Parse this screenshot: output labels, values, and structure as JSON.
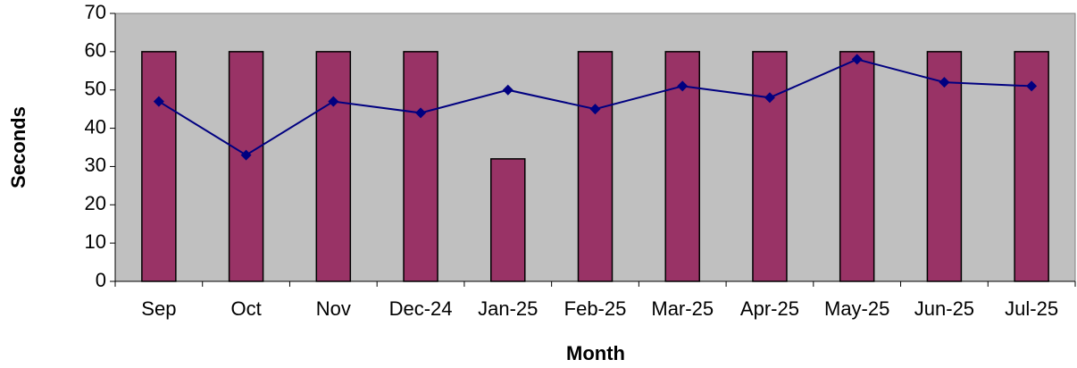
{
  "chart_data": {
    "type": "bar",
    "x_label": "Month",
    "y_label": "Seconds",
    "categories": [
      "Sep",
      "Oct",
      "Nov",
      "Dec-24",
      "Jan-25",
      "Feb-25",
      "Mar-25",
      "Apr-25",
      "May-25",
      "Jun-25",
      "Jul-25"
    ],
    "series": [
      {
        "type": "bar",
        "color": "#993366",
        "values": [
          60,
          60,
          60,
          60,
          32,
          60,
          60,
          60,
          60,
          60,
          60
        ]
      },
      {
        "type": "line",
        "color": "#000080",
        "values": [
          47,
          33,
          47,
          44,
          50,
          45,
          51,
          48,
          58,
          52,
          51
        ]
      }
    ],
    "ylim": [
      0,
      70
    ],
    "yticks": [
      0,
      10,
      20,
      30,
      40,
      50,
      60,
      70
    ],
    "plot_background": "#c0c0c0"
  }
}
